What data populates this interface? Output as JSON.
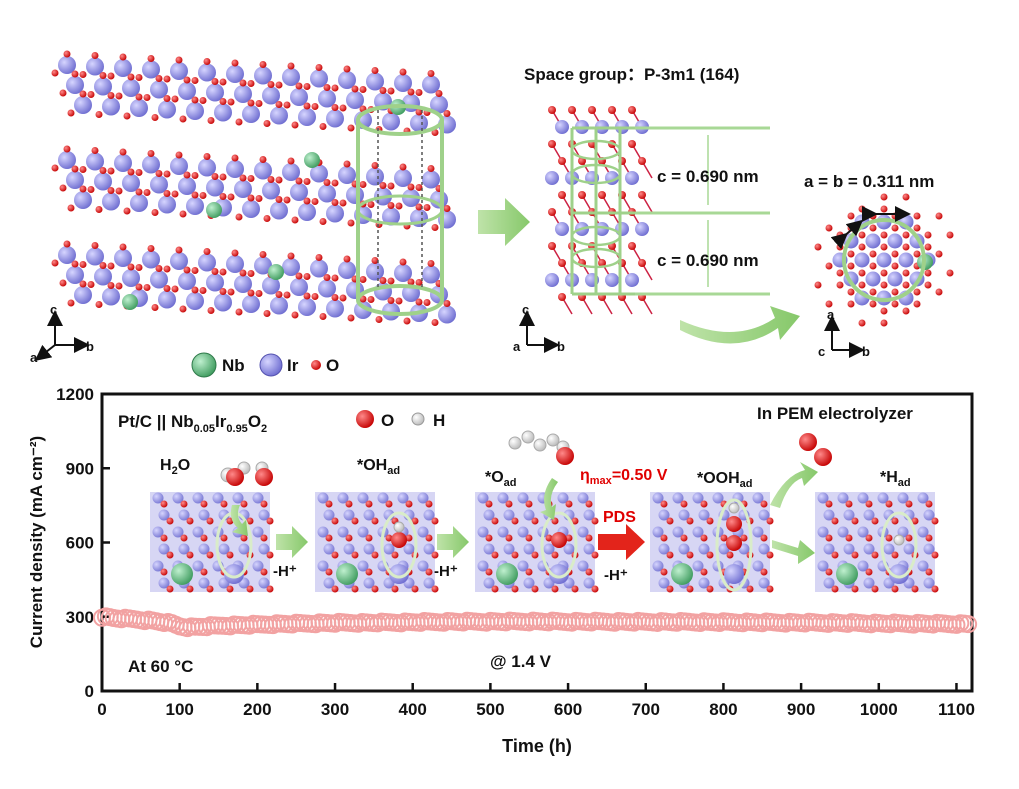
{
  "structure": {
    "space_group_label": "Space group：P-3m1 (164)",
    "c_label_1": "c = 0.690 nm",
    "c_label_2": "c = 0.690 nm",
    "ab_label": "a = b = 0.311 nm",
    "axes_left": {
      "c": "c",
      "a": "a",
      "b": "b"
    },
    "axes_middle": {
      "c": "c",
      "a": "a",
      "b": "b"
    },
    "axes_right": {
      "a": "a",
      "c": "c",
      "b": "b"
    },
    "legend": {
      "nb": "Nb",
      "ir": "Ir",
      "o": "O"
    },
    "colors": {
      "nb": "#5cb87a",
      "ir": "#8f8ee6",
      "o": "#d7191c",
      "cell": "#9fd18a"
    }
  },
  "chart_data": {
    "type": "scatter",
    "title": "",
    "xlabel": "Time (h)",
    "ylabel": "Current density (mA cm⁻²)",
    "xlim": [
      0,
      1120
    ],
    "ylim": [
      0,
      1200
    ],
    "xticks": [
      0,
      100,
      200,
      300,
      400,
      500,
      600,
      700,
      800,
      900,
      1000,
      1100
    ],
    "yticks": [
      0,
      300,
      600,
      900,
      1200
    ],
    "xtick_labels": [
      "0",
      "100",
      "200",
      "300",
      "400",
      "500",
      "600",
      "700",
      "800",
      "900",
      "1000",
      "1100"
    ],
    "ytick_labels": [
      "0",
      "300",
      "600",
      "900",
      "1200"
    ],
    "series": [
      {
        "marker_color": "#f2a2a2",
        "points": [
          [
            0,
            300
          ],
          [
            15,
            295
          ],
          [
            30,
            292
          ],
          [
            40,
            290
          ],
          [
            50,
            288
          ],
          [
            60,
            285
          ],
          [
            70,
            282
          ],
          [
            80,
            278
          ],
          [
            90,
            272
          ],
          [
            100,
            262
          ],
          [
            110,
            258
          ],
          [
            120,
            258
          ],
          [
            140,
            262
          ],
          [
            160,
            265
          ],
          [
            180,
            266
          ],
          [
            200,
            268
          ],
          [
            220,
            270
          ],
          [
            250,
            272
          ],
          [
            280,
            274
          ],
          [
            300,
            275
          ],
          [
            350,
            276
          ],
          [
            400,
            278
          ],
          [
            450,
            280
          ],
          [
            500,
            280
          ],
          [
            550,
            281
          ],
          [
            600,
            280
          ],
          [
            650,
            280
          ],
          [
            700,
            279
          ],
          [
            750,
            279
          ],
          [
            800,
            278
          ],
          [
            850,
            277
          ],
          [
            900,
            276
          ],
          [
            950,
            275
          ],
          [
            1000,
            273
          ],
          [
            1050,
            272
          ],
          [
            1100,
            271
          ],
          [
            1120,
            270
          ]
        ]
      }
    ],
    "annotations": {
      "system": "Pt/C || Nb0.05Ir0.95O2",
      "temperature": "At 60 °C",
      "voltage": "@ 1.4 V",
      "device": "In PEM electrolyzer",
      "atom_o": "O",
      "atom_h": "H"
    },
    "mechanism": {
      "step_labels": [
        "H₂O",
        "*OHad",
        "*Oad",
        "*OOHad",
        "*Had"
      ],
      "arrow_labels": [
        "-H⁺",
        "-H⁺",
        "-H⁺"
      ],
      "pds_label": "PDS",
      "eta_label": "ηmax=0.50 V"
    }
  }
}
